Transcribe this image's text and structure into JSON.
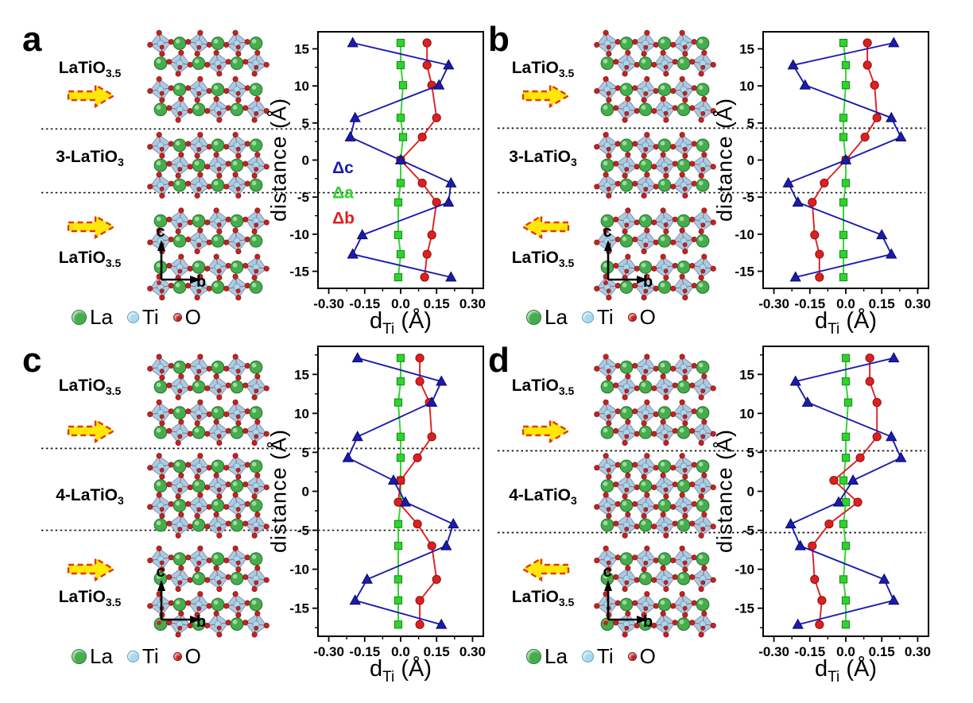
{
  "figure": {
    "background": "#ffffff",
    "atom_legend": [
      {
        "label": "La",
        "color": "#46ad4e",
        "edge": "#2c7a33"
      },
      {
        "label": "Ti",
        "color": "#a9d9ee",
        "edge": "#5e9fc4"
      },
      {
        "label": "O",
        "color": "#c4231f",
        "edge": "#7e1512"
      }
    ],
    "xlabel": {
      "main": "d",
      "sub": "Ti",
      "unit": " (Å)"
    },
    "ylabel": "distance (Å)",
    "colors": {
      "delta_c": "#1b1bb0",
      "delta_a": "#2fd32f",
      "delta_b": "#df1f1f",
      "octahedron": "#a9c4dc",
      "octahedron_edge": "#7795b8",
      "arrow_fill": "#ffe70a",
      "arrow_border": "#e03b00",
      "interface_line": "#111111"
    }
  },
  "panels": [
    {
      "letter": "a",
      "phase_top": {
        "text": "LaTiO",
        "sub": "3.5"
      },
      "phase_mid": {
        "text": "3-LaTiO",
        "sub": "3"
      },
      "phase_bot": {
        "text": "LaTiO",
        "sub": "3.5"
      },
      "arrow_top": "right",
      "arrow_bottom": "right",
      "axis_indicator": {
        "up": "c",
        "right": "b"
      }
    },
    {
      "letter": "b",
      "phase_top": {
        "text": "LaTiO",
        "sub": "3.5"
      },
      "phase_mid": {
        "text": "3-LaTiO",
        "sub": "3"
      },
      "phase_bot": {
        "text": "LaTiO",
        "sub": "3.5"
      },
      "arrow_top": "right",
      "arrow_bottom": "left",
      "axis_indicator": {
        "up": "c",
        "right": "b"
      }
    },
    {
      "letter": "c",
      "phase_top": {
        "text": "LaTiO",
        "sub": "3.5"
      },
      "phase_mid": {
        "text": "4-LaTiO",
        "sub": "3"
      },
      "phase_bot": {
        "text": "LaTiO",
        "sub": "3.5"
      },
      "arrow_top": "right",
      "arrow_bottom": "right",
      "axis_indicator": {
        "up": "c",
        "right": "b"
      }
    },
    {
      "letter": "d",
      "phase_top": {
        "text": "LaTiO",
        "sub": "3.5"
      },
      "phase_mid": {
        "text": "4-LaTiO",
        "sub": "3"
      },
      "phase_bot": {
        "text": "LaTiO",
        "sub": "3.5"
      },
      "arrow_top": "right",
      "arrow_bottom": "left",
      "axis_indicator": {
        "up": "c",
        "right": "b"
      }
    }
  ],
  "chart_data": [
    {
      "type": "line",
      "title": "panel a: Ti displacement profile",
      "xlabel": "d_Ti (Å)",
      "ylabel": "distance (Å)",
      "xlim": [
        -0.345,
        0.345
      ],
      "ylim": [
        -17.3,
        17.3
      ],
      "grid": false,
      "xticks": {
        "major": [
          -0.3,
          -0.15,
          0.0,
          0.15,
          0.3
        ],
        "labels": [
          "-0.30",
          "-0.15",
          "0.0",
          "0.15",
          "0.30"
        ],
        "minor": [
          -0.225,
          -0.075,
          0.075,
          0.225
        ]
      },
      "yticks": {
        "major": [
          15,
          10,
          5,
          0,
          -5,
          -10,
          -15
        ],
        "labels": [
          "15",
          "10",
          "5",
          "0",
          "-5",
          "-10",
          "-15"
        ],
        "minor": [
          17.5,
          12.5,
          7.5,
          2.5,
          -2.5,
          -7.5,
          -12.5,
          -17.5
        ]
      },
      "interfaces_y": [
        4.2,
        -4.4
      ],
      "legend": {
        "show": true,
        "x": -0.285,
        "ys": [
          -1.0,
          -4.4,
          -7.8
        ]
      },
      "series": [
        {
          "name": "Δc",
          "color": "#1b1bb0",
          "edge": "#0c0c5e",
          "marker": "triangle",
          "y": [
            15.8,
            12.8,
            10.1,
            5.7,
            3.1,
            0.0,
            -3.1,
            -5.7,
            -10.1,
            -12.7,
            -15.8
          ],
          "x": [
            -0.2,
            0.2,
            0.16,
            -0.19,
            -0.21,
            0.0,
            0.21,
            0.2,
            -0.16,
            -0.2,
            0.21
          ]
        },
        {
          "name": "Δa",
          "color": "#2fd32f",
          "edge": "#128a12",
          "marker": "square",
          "y": [
            15.8,
            12.8,
            10.1,
            5.7,
            3.1,
            0.0,
            -3.1,
            -5.7,
            -10.1,
            -12.7,
            -15.8
          ],
          "x": [
            0.0,
            0.0,
            0.01,
            0.0,
            0.01,
            0.0,
            0.0,
            -0.01,
            -0.01,
            0.0,
            -0.01
          ]
        },
        {
          "name": "Δb",
          "color": "#df1f1f",
          "edge": "#8c0f0f",
          "marker": "circle",
          "y": [
            15.8,
            12.8,
            10.1,
            5.7,
            3.1,
            0.0,
            -3.1,
            -5.7,
            -10.1,
            -12.7,
            -15.8
          ],
          "x": [
            0.11,
            0.11,
            0.13,
            0.15,
            0.09,
            0.0,
            0.09,
            0.15,
            0.13,
            0.11,
            0.1
          ]
        }
      ]
    },
    {
      "type": "line",
      "title": "panel b: Ti displacement profile",
      "xlabel": "d_Ti (Å)",
      "ylabel": "distance (Å)",
      "xlim": [
        -0.345,
        0.345
      ],
      "ylim": [
        -17.3,
        17.3
      ],
      "grid": false,
      "xticks": {
        "major": [
          -0.3,
          -0.15,
          0.0,
          0.15,
          0.3
        ],
        "labels": [
          "-0.30",
          "-0.15",
          "0.0",
          "0.15",
          "0.30"
        ],
        "minor": [
          -0.225,
          -0.075,
          0.075,
          0.225
        ]
      },
      "yticks": {
        "major": [
          15,
          10,
          5,
          0,
          -5,
          -10,
          -15
        ],
        "labels": [
          "15",
          "10",
          "5",
          "0",
          "-5",
          "-10",
          "-15"
        ],
        "minor": [
          17.5,
          12.5,
          7.5,
          2.5,
          -2.5,
          -7.5,
          -12.5,
          -17.5
        ]
      },
      "interfaces_y": [
        4.3,
        -4.4
      ],
      "legend": {
        "show": false
      },
      "series": [
        {
          "name": "Δc",
          "color": "#1b1bb0",
          "edge": "#0c0c5e",
          "marker": "triangle",
          "y": [
            15.8,
            12.8,
            10.1,
            5.7,
            3.1,
            0.0,
            -3.1,
            -5.7,
            -10.1,
            -12.7,
            -15.8
          ],
          "x": [
            0.2,
            -0.22,
            -0.17,
            0.19,
            0.23,
            0.0,
            -0.24,
            -0.2,
            0.15,
            0.19,
            -0.21
          ]
        },
        {
          "name": "Δa",
          "color": "#2fd32f",
          "edge": "#128a12",
          "marker": "square",
          "y": [
            15.8,
            12.8,
            10.1,
            5.7,
            3.1,
            0.0,
            -3.1,
            -5.7,
            -10.1,
            -12.7,
            -15.8
          ],
          "x": [
            -0.01,
            0.0,
            0.0,
            -0.01,
            -0.01,
            0.0,
            0.0,
            -0.01,
            -0.01,
            -0.01,
            -0.01
          ]
        },
        {
          "name": "Δb",
          "color": "#df1f1f",
          "edge": "#8c0f0f",
          "marker": "circle",
          "y": [
            15.8,
            12.8,
            10.1,
            5.7,
            3.1,
            0.0,
            -3.1,
            -5.7,
            -10.1,
            -12.7,
            -15.8
          ],
          "x": [
            0.09,
            0.09,
            0.12,
            0.13,
            0.08,
            0.0,
            -0.09,
            -0.14,
            -0.13,
            -0.11,
            -0.11
          ]
        }
      ]
    },
    {
      "type": "line",
      "title": "panel c: Ti displacement profile",
      "xlabel": "d_Ti (Å)",
      "ylabel": "distance (Å)",
      "xlim": [
        -0.345,
        0.345
      ],
      "ylim": [
        -18.6,
        18.6
      ],
      "grid": false,
      "xticks": {
        "major": [
          -0.3,
          -0.15,
          0.0,
          0.15,
          0.3
        ],
        "labels": [
          "-0.30",
          "-0.15",
          "0.0",
          "0.15",
          "0.30"
        ],
        "minor": [
          -0.225,
          -0.075,
          0.075,
          0.225
        ]
      },
      "yticks": {
        "major": [
          15,
          10,
          5,
          0,
          -5,
          -10,
          -15
        ],
        "labels": [
          "15",
          "10",
          "5",
          "0",
          "-5",
          "-10",
          "-15"
        ],
        "minor": [
          17.5,
          12.5,
          7.5,
          2.5,
          -2.5,
          -7.5,
          -12.5,
          -17.5
        ]
      },
      "interfaces_y": [
        5.5,
        -5.0
      ],
      "legend": {
        "show": false
      },
      "series": [
        {
          "name": "Δc",
          "color": "#1b1bb0",
          "edge": "#0c0c5e",
          "marker": "triangle",
          "y": [
            17.1,
            14.1,
            11.4,
            7.0,
            4.3,
            1.4,
            -1.4,
            -4.2,
            -7.0,
            -11.3,
            -14.0,
            -17.1
          ],
          "x": [
            -0.18,
            0.17,
            0.13,
            -0.18,
            -0.22,
            -0.03,
            0.02,
            0.22,
            0.19,
            -0.14,
            -0.19,
            0.17
          ]
        },
        {
          "name": "Δa",
          "color": "#2fd32f",
          "edge": "#128a12",
          "marker": "square",
          "y": [
            17.1,
            14.1,
            11.4,
            7.0,
            4.3,
            1.4,
            -1.4,
            -4.2,
            -7.0,
            -11.3,
            -14.0,
            -17.1
          ],
          "x": [
            0.0,
            0.0,
            -0.01,
            0.0,
            0.0,
            0.0,
            0.0,
            -0.01,
            -0.01,
            -0.01,
            -0.01,
            -0.01
          ]
        },
        {
          "name": "Δb",
          "color": "#df1f1f",
          "edge": "#8c0f0f",
          "marker": "circle",
          "y": [
            17.1,
            14.1,
            11.4,
            7.0,
            4.3,
            1.4,
            -1.4,
            -4.2,
            -7.0,
            -11.3,
            -14.0,
            -17.1
          ],
          "x": [
            0.08,
            0.08,
            0.12,
            0.13,
            0.07,
            0.0,
            -0.01,
            0.07,
            0.13,
            0.15,
            0.08,
            0.08
          ]
        }
      ]
    },
    {
      "type": "line",
      "title": "panel d: Ti displacement profile",
      "xlabel": "d_Ti (Å)",
      "ylabel": "distance (Å)",
      "xlim": [
        -0.345,
        0.345
      ],
      "ylim": [
        -18.6,
        18.6
      ],
      "grid": false,
      "xticks": {
        "major": [
          -0.3,
          -0.15,
          0.0,
          0.15,
          0.3
        ],
        "labels": [
          "-0.30",
          "-0.15",
          "0.0",
          "0.15",
          "0.30"
        ],
        "minor": [
          -0.225,
          -0.075,
          0.075,
          0.225
        ]
      },
      "yticks": {
        "major": [
          15,
          10,
          5,
          0,
          -5,
          -10,
          -15
        ],
        "labels": [
          "15",
          "10",
          "5",
          "0",
          "-5",
          "-10",
          "-15"
        ],
        "minor": [
          17.5,
          12.5,
          7.5,
          2.5,
          -2.5,
          -7.5,
          -12.5,
          -17.5
        ]
      },
      "interfaces_y": [
        5.2,
        -5.3
      ],
      "legend": {
        "show": false
      },
      "series": [
        {
          "name": "Δc",
          "color": "#1b1bb0",
          "edge": "#0c0c5e",
          "marker": "triangle",
          "y": [
            17.1,
            14.1,
            11.4,
            7.0,
            4.3,
            1.4,
            -1.4,
            -4.2,
            -7.0,
            -11.3,
            -14.0,
            -17.1
          ],
          "x": [
            0.2,
            -0.21,
            -0.16,
            0.19,
            0.23,
            0.03,
            -0.03,
            -0.23,
            -0.19,
            0.16,
            0.2,
            -0.2
          ]
        },
        {
          "name": "Δa",
          "color": "#2fd32f",
          "edge": "#128a12",
          "marker": "square",
          "y": [
            17.1,
            14.1,
            11.4,
            7.0,
            4.3,
            1.4,
            -1.4,
            -4.2,
            -7.0,
            -11.3,
            -14.0,
            -17.1
          ],
          "x": [
            0.0,
            0.0,
            0.01,
            0.0,
            0.0,
            -0.01,
            0.0,
            -0.01,
            0.0,
            -0.01,
            0.0,
            0.0
          ]
        },
        {
          "name": "Δb",
          "color": "#df1f1f",
          "edge": "#8c0f0f",
          "marker": "circle",
          "y": [
            17.1,
            14.1,
            11.4,
            7.0,
            4.3,
            1.4,
            -1.4,
            -4.2,
            -7.0,
            -11.3,
            -14.0,
            -17.1
          ],
          "x": [
            0.1,
            0.1,
            0.13,
            0.13,
            0.06,
            -0.05,
            0.05,
            -0.07,
            -0.14,
            -0.13,
            -0.1,
            -0.11
          ]
        }
      ]
    }
  ]
}
